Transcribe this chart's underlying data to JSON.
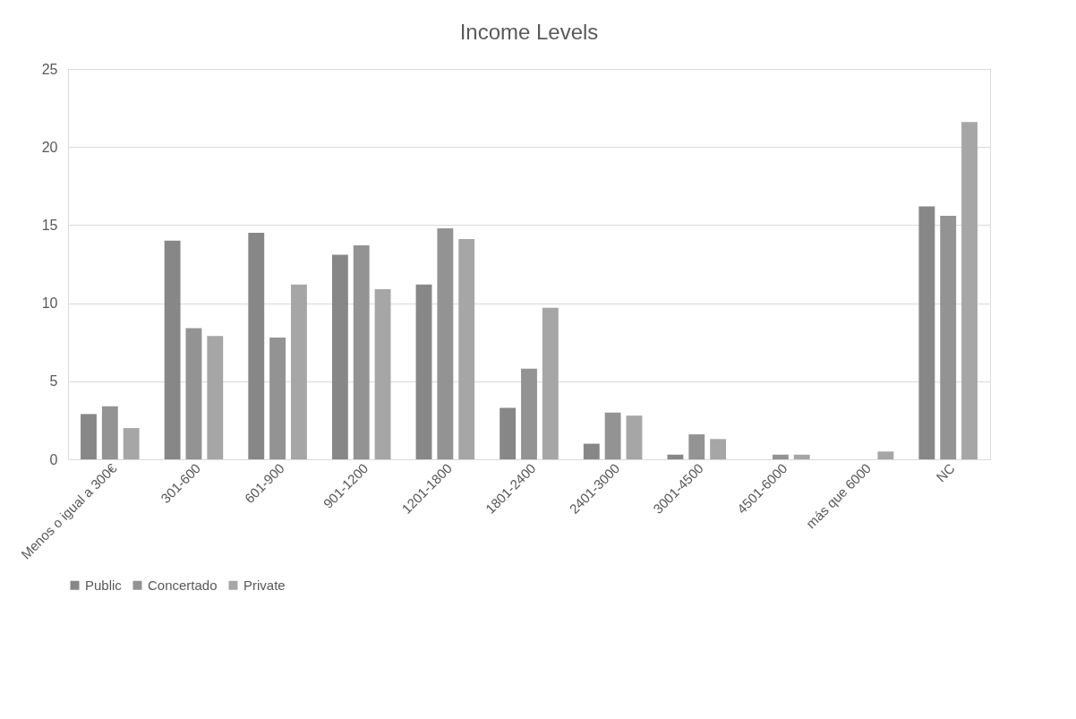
{
  "chart_data": {
    "type": "bar",
    "title": "Income Levels",
    "categories": [
      "Menos o igual a 300€",
      "301-600",
      "601-900",
      "901-1200",
      "1201-1800",
      "1801-2400",
      "2401-3000",
      "3001-4500",
      "4501-6000",
      "más que 6000",
      "NC"
    ],
    "series": [
      {
        "name": "Public",
        "color": "#878787",
        "values": [
          2.9,
          14.0,
          14.5,
          13.1,
          11.2,
          3.3,
          1.0,
          0.3,
          0,
          0,
          16.2
        ]
      },
      {
        "name": "Concertado",
        "color": "#939393",
        "values": [
          3.4,
          8.4,
          7.8,
          13.7,
          14.8,
          5.8,
          3.0,
          1.6,
          0.3,
          0,
          15.6
        ]
      },
      {
        "name": "Private",
        "color": "#a6a6a6",
        "values": [
          2.0,
          7.9,
          11.2,
          10.9,
          14.1,
          9.7,
          2.8,
          1.3,
          0.3,
          0.5,
          21.6
        ]
      }
    ],
    "ylim": [
      0,
      25
    ],
    "yticks": [
      0,
      5,
      10,
      15,
      20,
      25
    ],
    "grid": "y",
    "legend": "bottom"
  }
}
